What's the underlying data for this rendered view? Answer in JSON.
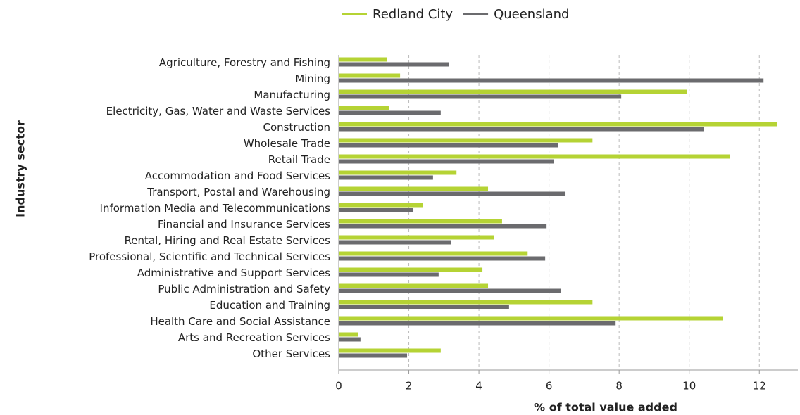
{
  "chart_data": {
    "type": "bar",
    "orientation": "horizontal",
    "x_label": "% of total value added",
    "y_label": "Industry sector",
    "categories": [
      "Agriculture, Forestry and Fishing",
      "Mining",
      "Manufacturing",
      "Electricity, Gas, Water and Waste Services",
      "Construction",
      "Wholesale Trade",
      "Retail Trade",
      "Accommodation and Food Services",
      "Transport, Postal and Warehousing",
      "Information Media and Telecommunications",
      "Financial and Insurance Services",
      "Rental, Hiring and Real Estate Services",
      "Professional, Scientific and Technical Services",
      "Administrative and Support Services",
      "Public Administration and Safety",
      "Education and Training",
      "Health Care and Social Assistance",
      "Arts and Recreation Services",
      "Other Services"
    ],
    "series": [
      {
        "name": "Redland City",
        "color": "#b5d334",
        "values": [
          1.37,
          1.75,
          9.93,
          1.43,
          12.5,
          7.24,
          11.16,
          3.36,
          4.26,
          2.41,
          4.66,
          4.44,
          5.39,
          4.1,
          4.26,
          7.24,
          10.95,
          0.56,
          2.91
        ]
      },
      {
        "name": "Queensland",
        "color": "#6b6b6e",
        "values": [
          3.14,
          12.12,
          8.06,
          2.91,
          10.41,
          6.25,
          6.13,
          2.69,
          6.47,
          2.13,
          5.93,
          3.2,
          5.89,
          2.85,
          6.33,
          4.86,
          7.9,
          0.62,
          1.95
        ]
      }
    ],
    "xlim": [
      0,
      13.1
    ],
    "xticks": [
      0,
      2,
      4,
      6,
      8,
      10,
      12
    ],
    "grid": true,
    "legend": "top"
  }
}
